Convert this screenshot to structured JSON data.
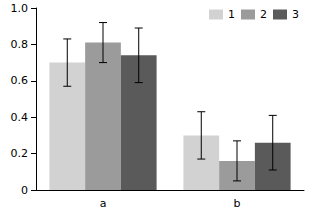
{
  "chart_data": {
    "type": "bar",
    "categories": [
      "a",
      "b"
    ],
    "series": [
      {
        "name": "1",
        "color": "#d2d2d2",
        "values": [
          0.7,
          0.3
        ],
        "errors": [
          0.13,
          0.13
        ]
      },
      {
        "name": "2",
        "color": "#9b9b9b",
        "values": [
          0.81,
          0.16
        ],
        "errors": [
          0.11,
          0.11
        ]
      },
      {
        "name": "3",
        "color": "#5a5a5a",
        "values": [
          0.74,
          0.26
        ],
        "errors": [
          0.15,
          0.15
        ]
      }
    ],
    "ylim": [
      0,
      1
    ],
    "yticks": [
      0,
      0.2,
      0.4,
      0.6,
      0.8,
      {
        "value": 1,
        "label": "1.0"
      }
    ],
    "grid": false,
    "legend": "upper right"
  }
}
